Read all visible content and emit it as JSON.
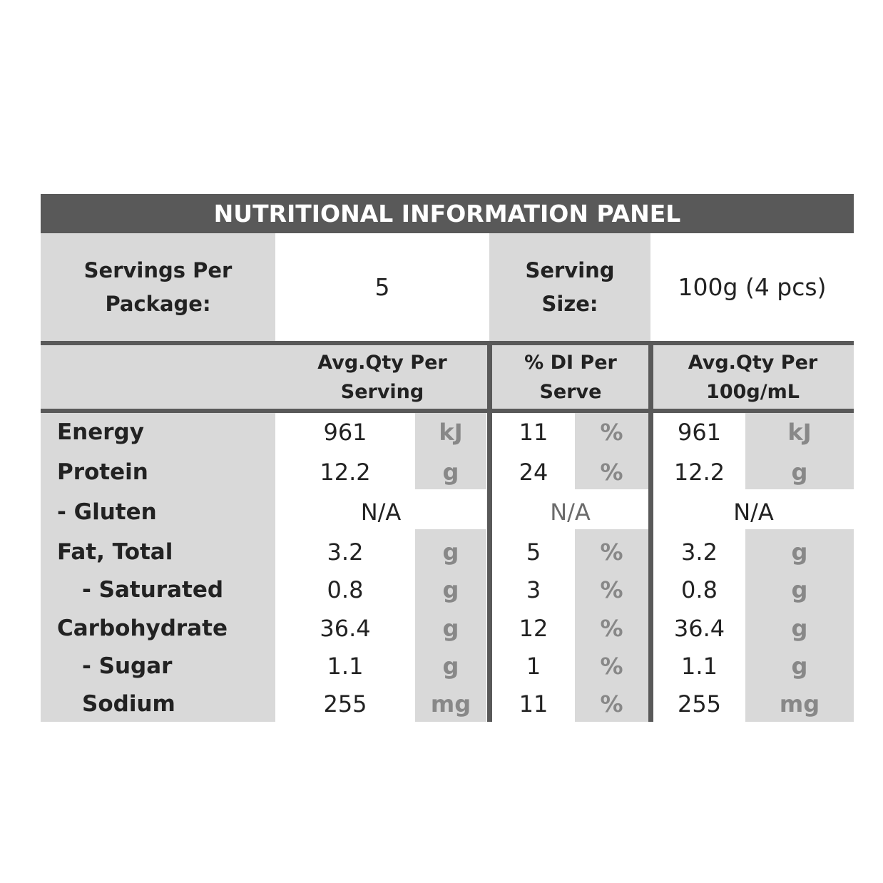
{
  "title": "NUTRITIONAL INFORMATION PANEL",
  "servings": {
    "per_package_label": "Servings Per\nPackage:",
    "per_package_value": "5",
    "size_label": "Serving\nSize:",
    "size_value": "100g (4 pcs)"
  },
  "columns": [
    "Avg.Qty Per\nServing",
    "% DI Per\nServe",
    "Avg.Qty Per\n100g/mL"
  ],
  "rows": [
    {
      "label": "Energy",
      "serving": "961",
      "serving_unit": "kJ",
      "di": "11",
      "di_unit": "%",
      "per100": "961",
      "per100_unit": "kJ"
    },
    {
      "label": "Protein",
      "serving": "12.2",
      "serving_unit": "g",
      "di": "24",
      "di_unit": "%",
      "per100": "12.2",
      "per100_unit": "g"
    },
    {
      "label": "- Gluten",
      "serving": "N/A",
      "di": "N/A",
      "per100": "N/A"
    },
    {
      "label": "Fat, Total",
      "serving": "3.2",
      "serving_unit": "g",
      "di": "5",
      "di_unit": "%",
      "per100": "3.2",
      "per100_unit": "g"
    },
    {
      "label": "- Saturated",
      "serving": "0.8",
      "serving_unit": "g",
      "di": "3",
      "di_unit": "%",
      "per100": "0.8",
      "per100_unit": "g"
    },
    {
      "label": "Carbohydrate",
      "serving": "36.4",
      "serving_unit": "g",
      "di": "12",
      "di_unit": "%",
      "per100": "36.4",
      "per100_unit": "g"
    },
    {
      "label": "- Sugar",
      "serving": "1.1",
      "serving_unit": "g",
      "di": "1",
      "di_unit": "%",
      "per100": "1.1",
      "per100_unit": "g"
    },
    {
      "label": "Sodium",
      "serving": "255",
      "serving_unit": "mg",
      "di": "11",
      "di_unit": "%",
      "per100": "255",
      "per100_unit": "mg"
    }
  ],
  "colors": {
    "header_bar": "#595959",
    "shade": "#d9d9d9",
    "unit_text": "#888888"
  }
}
